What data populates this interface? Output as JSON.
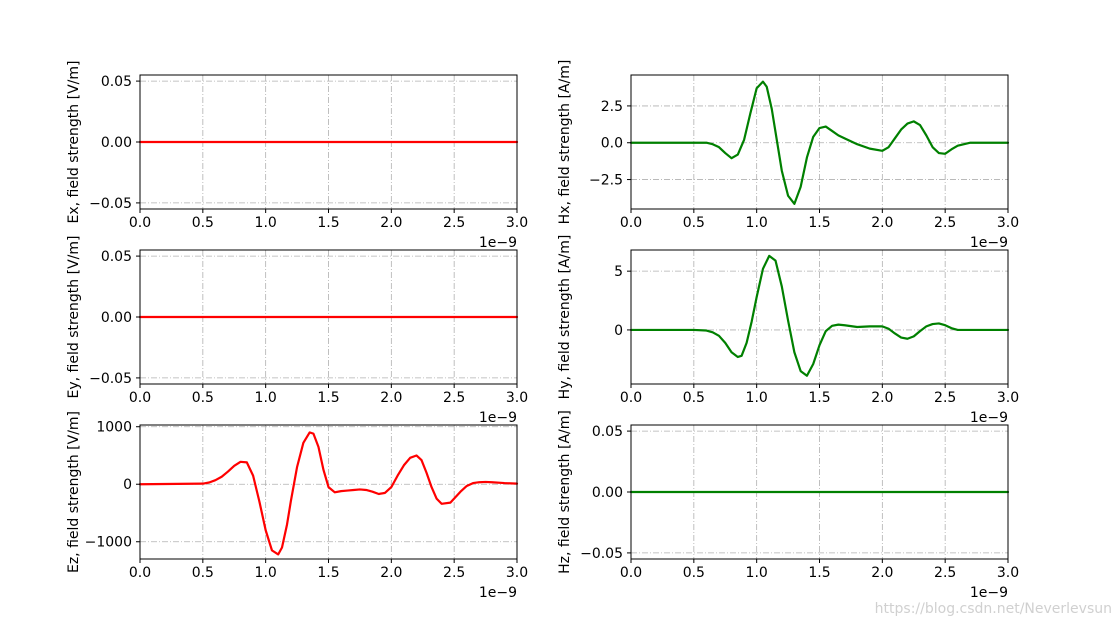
{
  "watermark": "https://blog.csdn.net/Neverlevsun",
  "chart_data": [
    {
      "type": "line",
      "ylabel": "Ex, field strength [V/m]",
      "xlabel": "",
      "x_multiplier_label": "1e−9",
      "color": "#ff0000",
      "xlim": [
        0,
        3
      ],
      "ylim": [
        -0.055,
        0.055
      ],
      "xticks": [
        0.0,
        0.5,
        1.0,
        1.5,
        2.0,
        2.5,
        3.0
      ],
      "xtick_labels": [
        "0.0",
        "0.5",
        "1.0",
        "1.5",
        "2.0",
        "2.5",
        "3.0"
      ],
      "yticks": [
        -0.05,
        0.0,
        0.05
      ],
      "ytick_labels": [
        "−0.05",
        "0.00",
        "0.05"
      ],
      "grid": true,
      "series": [
        {
          "x": [
            0,
            0.5,
            1.0,
            1.5,
            2.0,
            2.5,
            3.0
          ],
          "y": [
            0,
            0,
            0,
            0,
            0,
            0,
            0
          ]
        }
      ]
    },
    {
      "type": "line",
      "ylabel": "Hx, field strength [A/m]",
      "xlabel": "",
      "x_multiplier_label": "1e−9",
      "color": "#008000",
      "xlim": [
        0,
        3
      ],
      "ylim": [
        -4.5,
        4.6
      ],
      "xticks": [
        0.0,
        0.5,
        1.0,
        1.5,
        2.0,
        2.5,
        3.0
      ],
      "xtick_labels": [
        "0.0",
        "0.5",
        "1.0",
        "1.5",
        "2.0",
        "2.5",
        "3.0"
      ],
      "yticks": [
        -2.5,
        0.0,
        2.5
      ],
      "ytick_labels": [
        "−2.5",
        "0.0",
        "2.5"
      ],
      "grid": true,
      "series": [
        {
          "x": [
            0,
            0.5,
            0.6,
            0.65,
            0.7,
            0.75,
            0.8,
            0.85,
            0.9,
            0.95,
            1.0,
            1.05,
            1.08,
            1.12,
            1.16,
            1.2,
            1.25,
            1.3,
            1.35,
            1.4,
            1.45,
            1.5,
            1.55,
            1.6,
            1.65,
            1.7,
            1.8,
            1.9,
            2.0,
            2.05,
            2.1,
            2.15,
            2.2,
            2.25,
            2.3,
            2.35,
            2.4,
            2.45,
            2.5,
            2.55,
            2.6,
            2.7,
            2.8,
            3.0
          ],
          "y": [
            0,
            0,
            0,
            -0.1,
            -0.3,
            -0.7,
            -1.05,
            -0.8,
            0.2,
            2.0,
            3.7,
            4.15,
            3.8,
            2.3,
            0.2,
            -1.9,
            -3.6,
            -4.15,
            -3.0,
            -1.0,
            0.4,
            1.0,
            1.1,
            0.8,
            0.5,
            0.3,
            -0.1,
            -0.4,
            -0.55,
            -0.3,
            0.3,
            0.9,
            1.3,
            1.45,
            1.2,
            0.5,
            -0.3,
            -0.7,
            -0.75,
            -0.45,
            -0.2,
            0,
            0,
            0
          ]
        }
      ]
    },
    {
      "type": "line",
      "ylabel": "Ey, field strength [V/m]",
      "xlabel": "",
      "x_multiplier_label": "1e−9",
      "color": "#ff0000",
      "xlim": [
        0,
        3
      ],
      "ylim": [
        -0.055,
        0.055
      ],
      "xticks": [
        0.0,
        0.5,
        1.0,
        1.5,
        2.0,
        2.5,
        3.0
      ],
      "xtick_labels": [
        "0.0",
        "0.5",
        "1.0",
        "1.5",
        "2.0",
        "2.5",
        "3.0"
      ],
      "yticks": [
        -0.05,
        0.0,
        0.05
      ],
      "ytick_labels": [
        "−0.05",
        "0.00",
        "0.05"
      ],
      "grid": true,
      "series": [
        {
          "x": [
            0,
            0.5,
            1.0,
            1.5,
            2.0,
            2.5,
            3.0
          ],
          "y": [
            0,
            0,
            0,
            0,
            0,
            0,
            0
          ]
        }
      ]
    },
    {
      "type": "line",
      "ylabel": "Hy, field strength [A/m]",
      "xlabel": "",
      "x_multiplier_label": "1e−9",
      "color": "#008000",
      "xlim": [
        0,
        3
      ],
      "ylim": [
        -4.6,
        6.8
      ],
      "xticks": [
        0.0,
        0.5,
        1.0,
        1.5,
        2.0,
        2.5,
        3.0
      ],
      "xtick_labels": [
        "0.0",
        "0.5",
        "1.0",
        "1.5",
        "2.0",
        "2.5",
        "3.0"
      ],
      "yticks": [
        0,
        5
      ],
      "ytick_labels": [
        "0",
        "5"
      ],
      "grid": true,
      "series": [
        {
          "x": [
            0,
            0.5,
            0.6,
            0.65,
            0.7,
            0.75,
            0.8,
            0.85,
            0.88,
            0.92,
            0.96,
            1.0,
            1.05,
            1.1,
            1.15,
            1.2,
            1.25,
            1.3,
            1.35,
            1.4,
            1.45,
            1.5,
            1.55,
            1.6,
            1.65,
            1.7,
            1.8,
            1.9,
            2.0,
            2.05,
            2.1,
            2.15,
            2.2,
            2.25,
            2.3,
            2.35,
            2.4,
            2.45,
            2.5,
            2.55,
            2.6,
            2.7,
            3.0
          ],
          "y": [
            0,
            0,
            -0.05,
            -0.2,
            -0.5,
            -1.1,
            -1.9,
            -2.3,
            -2.2,
            -1.1,
            0.7,
            2.8,
            5.2,
            6.3,
            5.9,
            3.7,
            0.8,
            -1.9,
            -3.5,
            -3.9,
            -2.9,
            -1.3,
            -0.1,
            0.35,
            0.45,
            0.4,
            0.25,
            0.3,
            0.3,
            0.1,
            -0.3,
            -0.65,
            -0.75,
            -0.55,
            -0.1,
            0.3,
            0.5,
            0.55,
            0.4,
            0.15,
            0,
            0,
            0
          ]
        }
      ]
    },
    {
      "type": "line",
      "ylabel": "Ez, field strength [V/m]",
      "xlabel": "",
      "x_multiplier_label": "1e−9",
      "color": "#ff0000",
      "xlim": [
        0,
        3
      ],
      "ylim": [
        -1300,
        1030
      ],
      "xticks": [
        0.0,
        0.5,
        1.0,
        1.5,
        2.0,
        2.5,
        3.0
      ],
      "xtick_labels": [
        "0.0",
        "0.5",
        "1.0",
        "1.5",
        "2.0",
        "2.5",
        "3.0"
      ],
      "yticks": [
        -1000,
        0,
        1000
      ],
      "ytick_labels": [
        "−1000",
        "0",
        "1000"
      ],
      "grid": true,
      "series": [
        {
          "x": [
            0,
            0.5,
            0.55,
            0.6,
            0.65,
            0.7,
            0.75,
            0.8,
            0.85,
            0.9,
            0.95,
            1.0,
            1.05,
            1.1,
            1.13,
            1.17,
            1.2,
            1.25,
            1.3,
            1.35,
            1.38,
            1.42,
            1.46,
            1.5,
            1.55,
            1.6,
            1.65,
            1.7,
            1.75,
            1.8,
            1.85,
            1.9,
            1.95,
            2.0,
            2.05,
            2.1,
            2.15,
            2.2,
            2.24,
            2.28,
            2.32,
            2.36,
            2.4,
            2.47,
            2.55,
            2.6,
            2.65,
            2.7,
            2.75,
            2.8,
            2.9,
            3.0
          ],
          "y": [
            0,
            10,
            30,
            70,
            130,
            220,
            320,
            390,
            380,
            150,
            -300,
            -800,
            -1150,
            -1220,
            -1100,
            -700,
            -300,
            300,
            720,
            900,
            880,
            650,
            250,
            -50,
            -140,
            -120,
            -110,
            -100,
            -90,
            -100,
            -130,
            -170,
            -150,
            -50,
            150,
            330,
            460,
            500,
            420,
            200,
            -50,
            -250,
            -340,
            -320,
            -130,
            -30,
            20,
            35,
            40,
            35,
            20,
            10
          ]
        }
      ]
    },
    {
      "type": "line",
      "ylabel": "Hz, field strength [A/m]",
      "xlabel": "",
      "x_multiplier_label": "1e−9",
      "color": "#008000",
      "xlim": [
        0,
        3
      ],
      "ylim": [
        -0.055,
        0.055
      ],
      "xticks": [
        0.0,
        0.5,
        1.0,
        1.5,
        2.0,
        2.5,
        3.0
      ],
      "xtick_labels": [
        "0.0",
        "0.5",
        "1.0",
        "1.5",
        "2.0",
        "2.5",
        "3.0"
      ],
      "yticks": [
        -0.05,
        0.0,
        0.05
      ],
      "ytick_labels": [
        "−0.05",
        "0.00",
        "0.05"
      ],
      "grid": true,
      "series": [
        {
          "x": [
            0,
            0.5,
            1.0,
            1.5,
            2.0,
            2.5,
            3.0
          ],
          "y": [
            0,
            0,
            0,
            0,
            0,
            0,
            0
          ]
        }
      ]
    }
  ]
}
